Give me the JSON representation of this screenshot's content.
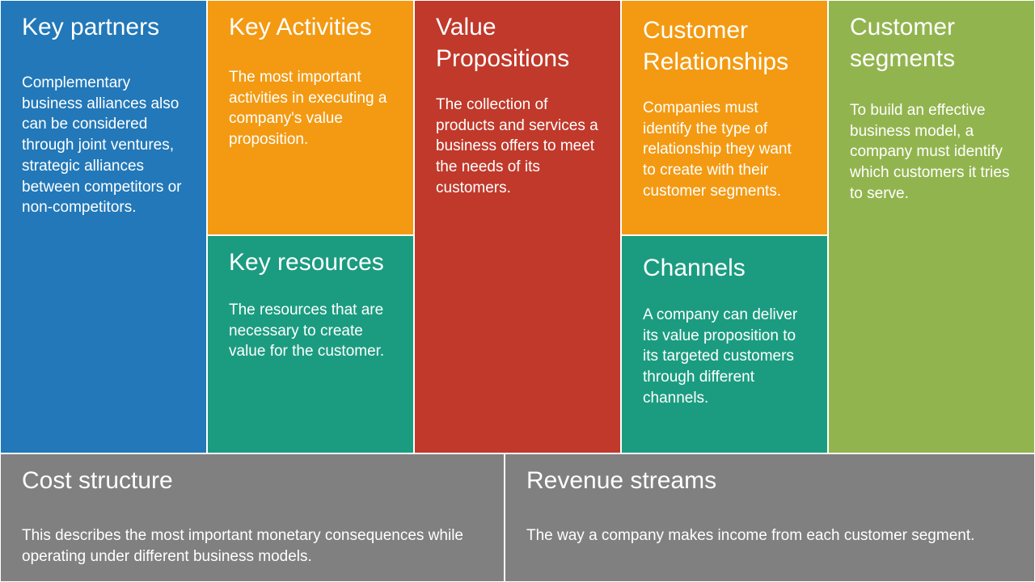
{
  "blocks": {
    "key_partners": {
      "title": "Key partners",
      "text": "Complementary business alliances also can be considered through joint ventures, strategic alliances between competitors or non-competitors."
    },
    "key_activities": {
      "title": "Key Activities",
      "text": "The most important activities in executing a company's value proposition."
    },
    "key_resources": {
      "title": "Key resources",
      "text": "The resources that are necessary to create value for the customer."
    },
    "value_propositions": {
      "title": "Value Propositions",
      "text": "The collection of products and services a business offers to meet the needs of its customers."
    },
    "customer_relationships": {
      "title": "Customer Relationships",
      "text": "Companies must identify the type of relationship they want to create with their customer segments."
    },
    "channels": {
      "title": "Channels",
      "text": "A company can deliver its value proposition to its targeted customers through different channels."
    },
    "customer_segments": {
      "title": "Customer segments",
      "text": "To build an effective business model, a company must identify which customers it tries to serve."
    },
    "cost_structure": {
      "title": "Cost structure",
      "text": "This describes the most important monetary consequences while operating under different business models."
    },
    "revenue_streams": {
      "title": "Revenue streams",
      "text": "The way a company makes income from each customer segment."
    }
  },
  "colors": {
    "blue": "#2278b8",
    "orange": "#f39a12",
    "teal": "#1b9c80",
    "red": "#c0392b",
    "green": "#92b44f",
    "gray": "#808080"
  }
}
